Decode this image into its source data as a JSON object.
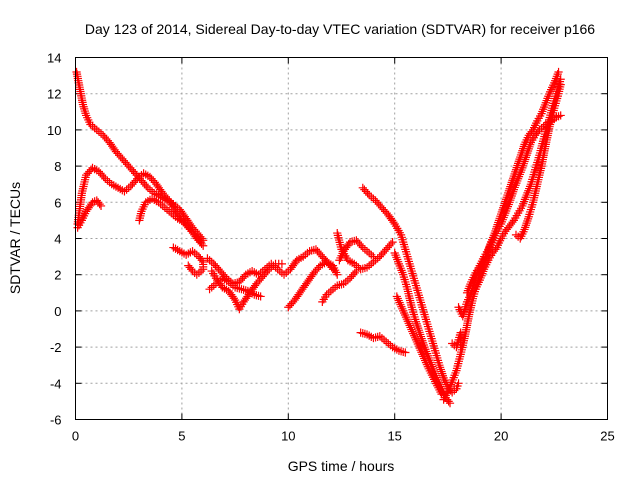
{
  "chart_data": {
    "type": "scatter",
    "title": "Day 123 of 2014, Sidereal Day-to-day VTEC variation (SDTVAR) for receiver p166",
    "xlabel": "GPS time / hours",
    "ylabel": "SDTVAR / TECUs",
    "xlim": [
      0,
      25
    ],
    "ylim": [
      -6,
      14
    ],
    "xticks": [
      0,
      5,
      10,
      15,
      20,
      25
    ],
    "yticks": [
      -6,
      -4,
      -2,
      0,
      2,
      4,
      6,
      8,
      10,
      12,
      14
    ],
    "grid": true,
    "marker": "plus",
    "color": "#ff0000",
    "series": [
      {
        "points": [
          [
            0.05,
            13.2
          ],
          [
            0.15,
            12.6
          ],
          [
            0.25,
            12.0
          ],
          [
            0.35,
            11.4
          ],
          [
            0.5,
            10.8
          ],
          [
            0.7,
            10.3
          ],
          [
            1.0,
            10.0
          ],
          [
            1.3,
            9.7
          ],
          [
            1.6,
            9.3
          ],
          [
            1.9,
            8.8
          ],
          [
            2.2,
            8.4
          ],
          [
            2.5,
            8.0
          ],
          [
            2.8,
            7.6
          ],
          [
            3.1,
            7.2
          ],
          [
            3.4,
            6.8
          ],
          [
            3.7,
            6.5
          ],
          [
            4.0,
            6.3
          ],
          [
            4.3,
            6.1
          ],
          [
            4.6,
            5.9
          ],
          [
            4.9,
            5.6
          ],
          [
            5.2,
            5.1
          ],
          [
            5.5,
            4.6
          ],
          [
            5.8,
            4.2
          ],
          [
            6.0,
            3.9
          ]
        ]
      },
      {
        "points": [
          [
            0.1,
            4.8
          ],
          [
            0.3,
            6.5
          ],
          [
            0.5,
            7.5
          ],
          [
            0.8,
            7.9
          ],
          [
            1.1,
            7.7
          ],
          [
            1.4,
            7.3
          ],
          [
            1.7,
            7.0
          ],
          [
            2.0,
            6.8
          ],
          [
            2.3,
            6.6
          ],
          [
            2.6,
            6.9
          ],
          [
            2.9,
            7.3
          ],
          [
            3.2,
            7.6
          ],
          [
            3.5,
            7.4
          ],
          [
            3.8,
            7.0
          ],
          [
            4.1,
            6.5
          ],
          [
            4.4,
            6.1
          ],
          [
            4.7,
            5.5
          ],
          [
            5.0,
            5.0
          ],
          [
            5.3,
            4.6
          ],
          [
            5.6,
            4.2
          ],
          [
            5.9,
            3.8
          ]
        ]
      },
      {
        "points": [
          [
            0.1,
            4.6
          ],
          [
            0.3,
            5.0
          ],
          [
            0.5,
            5.5
          ],
          [
            0.8,
            6.0
          ],
          [
            1.0,
            6.1
          ],
          [
            1.2,
            5.8
          ]
        ]
      },
      {
        "points": [
          [
            3.0,
            5.0
          ],
          [
            3.1,
            5.5
          ],
          [
            3.3,
            6.0
          ],
          [
            3.6,
            6.2
          ],
          [
            3.9,
            6.0
          ],
          [
            4.2,
            5.7
          ],
          [
            4.5,
            5.4
          ],
          [
            4.8,
            5.1
          ],
          [
            5.1,
            4.9
          ],
          [
            5.4,
            4.5
          ],
          [
            5.7,
            4.0
          ],
          [
            6.0,
            3.6
          ]
        ]
      },
      {
        "points": [
          [
            4.6,
            3.5
          ],
          [
            4.9,
            3.3
          ],
          [
            5.2,
            3.1
          ],
          [
            5.5,
            3.3
          ],
          [
            5.8,
            3.0
          ],
          [
            6.0,
            2.7
          ],
          [
            6.0,
            2.3
          ],
          [
            5.7,
            2.0
          ],
          [
            5.5,
            2.2
          ],
          [
            5.3,
            2.5
          ]
        ]
      },
      {
        "points": [
          [
            6.2,
            2.9
          ],
          [
            6.5,
            2.6
          ],
          [
            6.8,
            2.2
          ],
          [
            7.1,
            1.8
          ],
          [
            7.4,
            1.5
          ],
          [
            7.7,
            1.6
          ],
          [
            8.0,
            2.0
          ],
          [
            8.3,
            2.2
          ],
          [
            8.6,
            2.0
          ],
          [
            8.9,
            2.3
          ],
          [
            9.2,
            2.6
          ],
          [
            9.5,
            2.3
          ],
          [
            9.8,
            2.0
          ],
          [
            10.1,
            2.3
          ],
          [
            10.4,
            2.8
          ],
          [
            10.7,
            3.0
          ],
          [
            11.0,
            3.3
          ],
          [
            11.3,
            3.4
          ],
          [
            11.6,
            3.0
          ],
          [
            11.9,
            2.6
          ],
          [
            12.1,
            2.3
          ]
        ]
      },
      {
        "points": [
          [
            6.4,
            2.2
          ],
          [
            6.6,
            1.8
          ],
          [
            6.9,
            1.3
          ],
          [
            7.2,
            1.1
          ],
          [
            7.5,
            0.6
          ],
          [
            7.7,
            0.1
          ],
          [
            7.9,
            0.5
          ],
          [
            8.2,
            1.0
          ],
          [
            8.5,
            1.5
          ],
          [
            8.8,
            1.9
          ],
          [
            9.1,
            2.3
          ],
          [
            9.4,
            2.6
          ],
          [
            9.7,
            2.6
          ]
        ]
      },
      {
        "points": [
          [
            6.3,
            1.2
          ],
          [
            6.6,
            1.5
          ],
          [
            6.9,
            1.8
          ],
          [
            7.2,
            1.6
          ],
          [
            7.5,
            1.3
          ],
          [
            7.8,
            1.2
          ],
          [
            8.1,
            1.1
          ],
          [
            8.4,
            0.9
          ],
          [
            8.7,
            0.8
          ]
        ]
      },
      {
        "points": [
          [
            10.0,
            0.2
          ],
          [
            10.3,
            0.6
          ],
          [
            10.6,
            1.1
          ],
          [
            10.9,
            1.6
          ],
          [
            11.2,
            2.1
          ],
          [
            11.5,
            2.5
          ],
          [
            11.8,
            2.7
          ],
          [
            12.1,
            2.5
          ],
          [
            12.3,
            2.0
          ]
        ]
      },
      {
        "points": [
          [
            11.6,
            0.5
          ],
          [
            11.8,
            0.9
          ],
          [
            12.0,
            1.1
          ],
          [
            12.3,
            1.4
          ],
          [
            12.6,
            1.5
          ],
          [
            12.9,
            1.8
          ],
          [
            13.2,
            2.2
          ]
        ]
      },
      {
        "points": [
          [
            12.3,
            4.3
          ],
          [
            12.5,
            3.4
          ],
          [
            12.8,
            2.8
          ],
          [
            13.1,
            2.6
          ],
          [
            13.4,
            2.3
          ],
          [
            13.7,
            2.4
          ],
          [
            14.0,
            2.7
          ],
          [
            14.3,
            3.0
          ],
          [
            14.6,
            3.4
          ],
          [
            14.9,
            3.8
          ]
        ]
      },
      {
        "points": [
          [
            12.4,
            2.8
          ],
          [
            12.6,
            3.3
          ],
          [
            12.9,
            3.8
          ],
          [
            13.2,
            3.9
          ],
          [
            13.5,
            3.5
          ],
          [
            13.8,
            3.2
          ],
          [
            14.0,
            3.0
          ]
        ]
      },
      {
        "points": [
          [
            13.5,
            6.8
          ],
          [
            13.8,
            6.4
          ],
          [
            14.1,
            6.1
          ],
          [
            14.4,
            5.7
          ],
          [
            14.7,
            5.3
          ],
          [
            15.0,
            4.8
          ],
          [
            15.3,
            4.2
          ],
          [
            15.5,
            3.4
          ],
          [
            15.7,
            2.6
          ],
          [
            15.9,
            1.8
          ],
          [
            16.1,
            1.0
          ],
          [
            16.3,
            0.2
          ],
          [
            16.5,
            -0.6
          ],
          [
            16.7,
            -1.4
          ],
          [
            16.9,
            -2.2
          ],
          [
            17.1,
            -3.0
          ],
          [
            17.3,
            -3.7
          ],
          [
            17.5,
            -4.2
          ],
          [
            17.7,
            -4.5
          ],
          [
            17.9,
            -4.3
          ],
          [
            18.0,
            -4.0
          ]
        ]
      },
      {
        "points": [
          [
            15.0,
            3.2
          ],
          [
            15.2,
            2.6
          ],
          [
            15.4,
            2.0
          ],
          [
            15.6,
            1.2
          ],
          [
            15.8,
            0.2
          ],
          [
            16.0,
            -0.6
          ],
          [
            16.2,
            -1.3
          ],
          [
            16.4,
            -2.0
          ],
          [
            16.6,
            -2.6
          ],
          [
            16.8,
            -3.2
          ],
          [
            17.0,
            -3.8
          ],
          [
            17.2,
            -4.3
          ],
          [
            17.4,
            -4.8
          ],
          [
            17.6,
            -5.1
          ]
        ]
      },
      {
        "points": [
          [
            13.4,
            -1.2
          ],
          [
            13.7,
            -1.3
          ],
          [
            14.0,
            -1.5
          ],
          [
            14.3,
            -1.4
          ],
          [
            14.6,
            -1.7
          ],
          [
            14.9,
            -2.0
          ],
          [
            15.2,
            -2.2
          ],
          [
            15.5,
            -2.3
          ]
        ]
      },
      {
        "points": [
          [
            15.1,
            0.8
          ],
          [
            15.4,
            0.0
          ],
          [
            15.7,
            -0.8
          ],
          [
            16.0,
            -1.6
          ],
          [
            16.3,
            -2.4
          ],
          [
            16.6,
            -3.2
          ],
          [
            16.9,
            -3.9
          ],
          [
            17.2,
            -4.6
          ]
        ]
      },
      {
        "points": [
          [
            17.7,
            -1.8
          ],
          [
            17.9,
            -2.0
          ],
          [
            18.1,
            -1.2
          ],
          [
            18.1,
            -2.0
          ]
        ]
      },
      {
        "points": [
          [
            17.3,
            -4.9
          ],
          [
            17.6,
            -4.2
          ],
          [
            17.9,
            -3.3
          ],
          [
            18.1,
            -2.4
          ],
          [
            18.3,
            -1.4
          ],
          [
            18.5,
            -0.2
          ],
          [
            18.7,
            0.8
          ],
          [
            18.9,
            1.6
          ],
          [
            19.1,
            2.3
          ],
          [
            19.3,
            3.0
          ],
          [
            19.5,
            3.7
          ],
          [
            19.7,
            4.3
          ],
          [
            19.9,
            5.0
          ],
          [
            20.1,
            5.7
          ],
          [
            20.3,
            6.4
          ],
          [
            20.5,
            7.1
          ],
          [
            20.7,
            7.8
          ],
          [
            20.9,
            8.5
          ],
          [
            21.1,
            9.2
          ],
          [
            21.3,
            9.7
          ],
          [
            21.5,
            10.0
          ],
          [
            21.7,
            10.5
          ],
          [
            21.9,
            10.9
          ],
          [
            22.1,
            11.5
          ],
          [
            22.3,
            12.1
          ],
          [
            22.5,
            12.6
          ],
          [
            22.7,
            13.2
          ]
        ]
      },
      {
        "points": [
          [
            18.4,
            1.0
          ],
          [
            18.6,
            1.6
          ],
          [
            18.8,
            2.1
          ],
          [
            19.0,
            2.5
          ],
          [
            19.2,
            3.0
          ],
          [
            19.4,
            3.4
          ],
          [
            19.6,
            3.9
          ],
          [
            19.8,
            4.4
          ],
          [
            20.0,
            4.8
          ],
          [
            20.2,
            5.4
          ],
          [
            20.4,
            6.0
          ],
          [
            20.6,
            6.7
          ],
          [
            20.8,
            7.3
          ],
          [
            21.0,
            7.9
          ],
          [
            21.2,
            8.6
          ],
          [
            21.4,
            9.3
          ],
          [
            21.6,
            9.7
          ],
          [
            21.8,
            10.0
          ],
          [
            22.0,
            10.2
          ],
          [
            22.2,
            10.4
          ],
          [
            22.4,
            10.5
          ],
          [
            22.6,
            10.7
          ],
          [
            22.8,
            10.8
          ]
        ]
      },
      {
        "points": [
          [
            18.8,
            1.2
          ],
          [
            19.0,
            1.7
          ],
          [
            19.2,
            2.3
          ],
          [
            19.4,
            2.8
          ],
          [
            19.6,
            3.2
          ],
          [
            19.8,
            3.5
          ],
          [
            20.0,
            4.0
          ],
          [
            20.2,
            4.4
          ],
          [
            20.4,
            4.7
          ],
          [
            20.6,
            5.0
          ],
          [
            20.8,
            5.4
          ],
          [
            21.0,
            5.8
          ],
          [
            21.2,
            6.4
          ],
          [
            21.4,
            7.0
          ],
          [
            21.6,
            7.8
          ],
          [
            21.8,
            8.6
          ],
          [
            22.0,
            9.5
          ],
          [
            22.2,
            10.3
          ],
          [
            22.4,
            11.2
          ],
          [
            22.6,
            12.0
          ],
          [
            22.8,
            12.8
          ]
        ]
      },
      {
        "points": [
          [
            20.7,
            4.2
          ],
          [
            20.9,
            4.0
          ],
          [
            21.1,
            4.5
          ],
          [
            21.3,
            5.2
          ],
          [
            21.5,
            6.0
          ],
          [
            21.7,
            7.0
          ],
          [
            21.9,
            8.0
          ],
          [
            22.1,
            9.2
          ],
          [
            22.3,
            10.3
          ],
          [
            22.5,
            11.2
          ],
          [
            22.7,
            12.0
          ],
          [
            22.8,
            12.5
          ]
        ]
      },
      {
        "points": [
          [
            18.0,
            0.2
          ],
          [
            18.2,
            -0.3
          ],
          [
            18.4,
            0.5
          ],
          [
            18.6,
            1.0
          ],
          [
            18.8,
            1.8
          ],
          [
            19.0,
            2.5
          ]
        ]
      }
    ]
  }
}
